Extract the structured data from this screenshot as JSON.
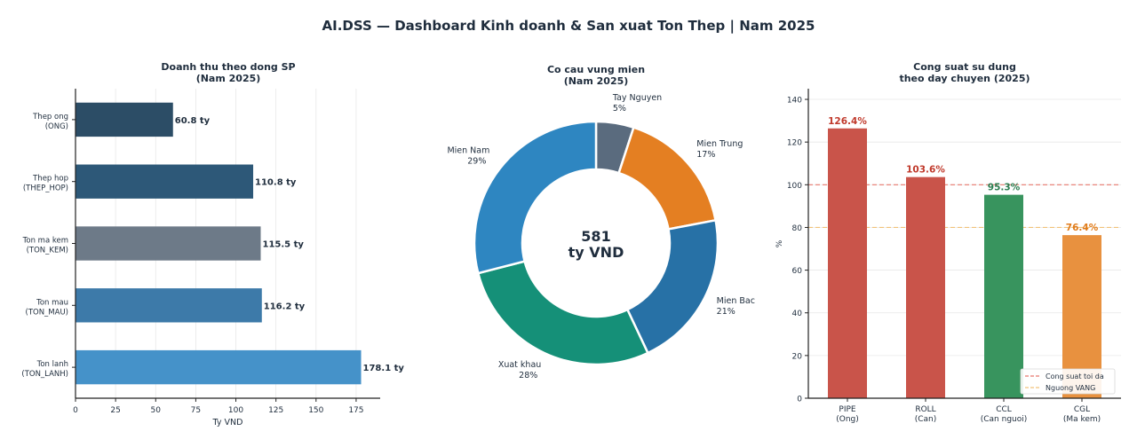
{
  "page_title": "AI.DSS — Dashboard Kinh doanh & San xuat Ton Thep  |  Nam 2025",
  "colors": {
    "text": "#1f2d3d",
    "axis": "#222222",
    "grid": "#e8e8e8",
    "red_line": "#e8786e",
    "gold_line": "#f2c27a"
  },
  "chart_data": [
    {
      "id": "revenue",
      "type": "bar",
      "orientation": "horizontal",
      "title_lines": [
        "Doanh thu theo dong SP",
        "(Nam 2025)"
      ],
      "xlabel": "Ty VND",
      "ylabel": "",
      "xlim": [
        0,
        190
      ],
      "x_ticks": [
        0,
        25,
        50,
        75,
        100,
        125,
        150,
        175
      ],
      "value_suffix": " ty",
      "categories": [
        {
          "lines": [
            "Thep ong",
            "(ONG)"
          ],
          "value": 60.8,
          "color": "#2c4d66"
        },
        {
          "lines": [
            "Thep hop",
            "(THEP_HOP)"
          ],
          "value": 110.8,
          "color": "#2d5878"
        },
        {
          "lines": [
            "Ton ma kem",
            "(TON_KEM)"
          ],
          "value": 115.5,
          "color": "#6d7a88"
        },
        {
          "lines": [
            "Ton mau",
            "(TON_MAU)"
          ],
          "value": 116.2,
          "color": "#3d7aa9"
        },
        {
          "lines": [
            "Ton lanh",
            "(TON_LANH)"
          ],
          "value": 178.1,
          "color": "#4592c9"
        }
      ]
    },
    {
      "id": "region",
      "type": "pie",
      "style": "donut",
      "title_lines": [
        "Co cau vung mien",
        "(Nam 2025)"
      ],
      "center_lines": [
        "581",
        "ty VND"
      ],
      "slices": [
        {
          "label": "Tay Nguyen",
          "pct_label": "5%",
          "value": 5,
          "color": "#5a6b7e"
        },
        {
          "label": "Mien Trung",
          "pct_label": "17%",
          "value": 17,
          "color": "#e47f22"
        },
        {
          "label": "Mien Bac",
          "pct_label": "21%",
          "value": 21,
          "color": "#2771a6"
        },
        {
          "label": "Xuat khau",
          "pct_label": "28%",
          "value": 28,
          "color": "#159078"
        },
        {
          "label": "Mien Nam",
          "pct_label": "29%",
          "value": 29,
          "color": "#2e86c1"
        }
      ]
    },
    {
      "id": "capacity",
      "type": "bar",
      "orientation": "vertical",
      "title_lines": [
        "Cong suat su dung",
        "theo day chuyen (2025)"
      ],
      "ylabel": "%",
      "ylim": [
        0,
        145
      ],
      "y_ticks": [
        0,
        20,
        40,
        60,
        80,
        100,
        120,
        140
      ],
      "value_suffix": "%",
      "categories": [
        {
          "lines": [
            "PIPE",
            "(Ong)"
          ],
          "value": 126.4,
          "color": "#c9544a",
          "label_color": "#c0392b"
        },
        {
          "lines": [
            "ROLL",
            "(Can)"
          ],
          "value": 103.6,
          "color": "#c9544a",
          "label_color": "#c0392b"
        },
        {
          "lines": [
            "CCL",
            "(Can nguoi)"
          ],
          "value": 95.3,
          "color": "#38945e",
          "label_color": "#2a7d4f"
        },
        {
          "lines": [
            "CGL",
            "(Ma kem)"
          ],
          "value": 76.4,
          "color": "#e8913f",
          "label_color": "#e07b1a"
        }
      ],
      "reference_lines": [
        {
          "name": "Cong suat toi da",
          "value": 100
        },
        {
          "name": "Nguong VANG",
          "value": 80
        }
      ]
    }
  ]
}
